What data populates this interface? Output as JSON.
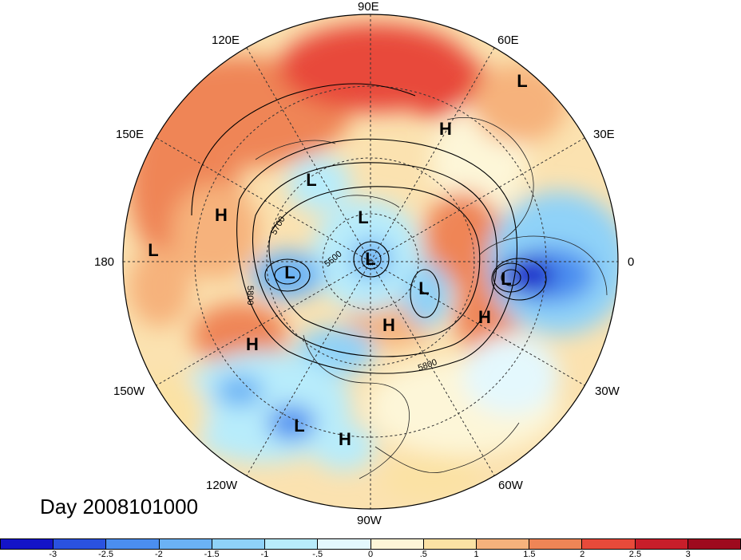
{
  "title": "Day 2008101000",
  "longitude_labels": {
    "top": "90E",
    "upper_left": "120E",
    "upper_right": "60E",
    "left_upper": "150E",
    "right_upper": "30E",
    "left": "180",
    "right": "0",
    "left_lower": "150W",
    "right_lower": "30W",
    "lower_left": "120W",
    "lower_right": "60W",
    "bottom": "90W"
  },
  "contour_labels": [
    "5700",
    "5800",
    "5500",
    "5800"
  ],
  "pressure_centers": [
    {
      "type": "L",
      "name": "L"
    },
    {
      "type": "H",
      "name": "H"
    },
    {
      "type": "L",
      "name": "L"
    },
    {
      "type": "H",
      "name": "H"
    },
    {
      "type": "L",
      "name": "L"
    },
    {
      "type": "L",
      "name": "L"
    },
    {
      "type": "L",
      "name": "L"
    },
    {
      "type": "L",
      "name": "L"
    },
    {
      "type": "L",
      "name": "L"
    },
    {
      "type": "L",
      "name": "L"
    },
    {
      "type": "H",
      "name": "H"
    },
    {
      "type": "H",
      "name": "H"
    },
    {
      "type": "H",
      "name": "H"
    },
    {
      "type": "L",
      "name": "L"
    },
    {
      "type": "H",
      "name": "H"
    }
  ],
  "colorbar": {
    "ticks": [
      "-3",
      "-2.5",
      "-2",
      "-1.5",
      "-1",
      "-.5",
      "0",
      ".5",
      "1",
      "1.5",
      "2",
      "2.5",
      "3"
    ],
    "colors": [
      "#1414c8",
      "#2a52e0",
      "#4b8ef0",
      "#6bb2f5",
      "#8fd2f8",
      "#b8ecfb",
      "#e4f8fd",
      "#fdf6d8",
      "#fbe2a4",
      "#f6b27c",
      "#ef8556",
      "#e84a3a",
      "#c81e2a",
      "#9e0a1e"
    ]
  }
}
